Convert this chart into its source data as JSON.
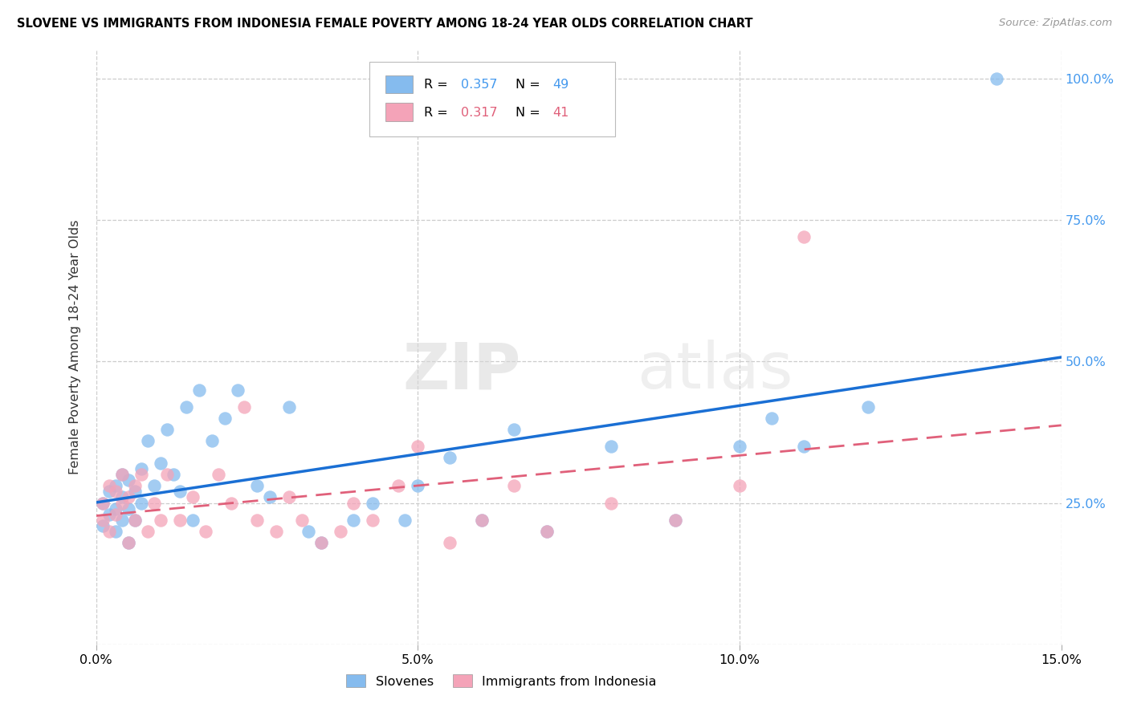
{
  "title": "SLOVENE VS IMMIGRANTS FROM INDONESIA FEMALE POVERTY AMONG 18-24 YEAR OLDS CORRELATION CHART",
  "source": "Source: ZipAtlas.com",
  "ylabel": "Female Poverty Among 18-24 Year Olds",
  "xlim": [
    0.0,
    0.15
  ],
  "ylim": [
    0.0,
    1.05
  ],
  "xticks": [
    0.0,
    0.05,
    0.1,
    0.15
  ],
  "xticklabels": [
    "0.0%",
    "5.0%",
    "10.0%",
    "15.0%"
  ],
  "yticks": [
    0.0,
    0.25,
    0.5,
    0.75,
    1.0
  ],
  "yticklabels_right": [
    "",
    "25.0%",
    "50.0%",
    "75.0%",
    "100.0%"
  ],
  "right_tick_color": "#4499ee",
  "slovene_color": "#85bbee",
  "indonesia_color": "#f4a3b8",
  "slovene_line_color": "#1a6fd4",
  "indonesia_line_color": "#e0607a",
  "legend_slovene_label": "Slovenes",
  "legend_indonesia_label": "Immigrants from Indonesia",
  "R_slovene": "0.357",
  "N_slovene": "49",
  "R_indonesia": "0.317",
  "N_indonesia": "41",
  "watermark_zip": "ZIP",
  "watermark_atlas": "atlas",
  "slovene_x": [
    0.001,
    0.001,
    0.002,
    0.002,
    0.003,
    0.003,
    0.003,
    0.004,
    0.004,
    0.004,
    0.005,
    0.005,
    0.005,
    0.006,
    0.006,
    0.007,
    0.007,
    0.008,
    0.009,
    0.01,
    0.011,
    0.012,
    0.013,
    0.014,
    0.015,
    0.016,
    0.018,
    0.02,
    0.022,
    0.025,
    0.027,
    0.03,
    0.033,
    0.035,
    0.04,
    0.043,
    0.048,
    0.05,
    0.055,
    0.06,
    0.065,
    0.07,
    0.08,
    0.09,
    0.1,
    0.105,
    0.11,
    0.12,
    0.14
  ],
  "slovene_y": [
    0.21,
    0.25,
    0.23,
    0.27,
    0.2,
    0.24,
    0.28,
    0.22,
    0.26,
    0.3,
    0.18,
    0.24,
    0.29,
    0.22,
    0.27,
    0.25,
    0.31,
    0.36,
    0.28,
    0.32,
    0.38,
    0.3,
    0.27,
    0.42,
    0.22,
    0.45,
    0.36,
    0.4,
    0.45,
    0.28,
    0.26,
    0.42,
    0.2,
    0.18,
    0.22,
    0.25,
    0.22,
    0.28,
    0.33,
    0.22,
    0.38,
    0.2,
    0.35,
    0.22,
    0.35,
    0.4,
    0.35,
    0.42,
    1.0
  ],
  "indonesia_x": [
    0.001,
    0.001,
    0.002,
    0.002,
    0.003,
    0.003,
    0.004,
    0.004,
    0.005,
    0.005,
    0.006,
    0.006,
    0.007,
    0.008,
    0.009,
    0.01,
    0.011,
    0.013,
    0.015,
    0.017,
    0.019,
    0.021,
    0.023,
    0.025,
    0.028,
    0.03,
    0.032,
    0.035,
    0.038,
    0.04,
    0.043,
    0.047,
    0.05,
    0.055,
    0.06,
    0.065,
    0.07,
    0.08,
    0.09,
    0.1,
    0.11
  ],
  "indonesia_y": [
    0.22,
    0.25,
    0.2,
    0.28,
    0.23,
    0.27,
    0.25,
    0.3,
    0.18,
    0.26,
    0.22,
    0.28,
    0.3,
    0.2,
    0.25,
    0.22,
    0.3,
    0.22,
    0.26,
    0.2,
    0.3,
    0.25,
    0.42,
    0.22,
    0.2,
    0.26,
    0.22,
    0.18,
    0.2,
    0.25,
    0.22,
    0.28,
    0.35,
    0.18,
    0.22,
    0.28,
    0.2,
    0.25,
    0.22,
    0.28,
    0.72
  ]
}
